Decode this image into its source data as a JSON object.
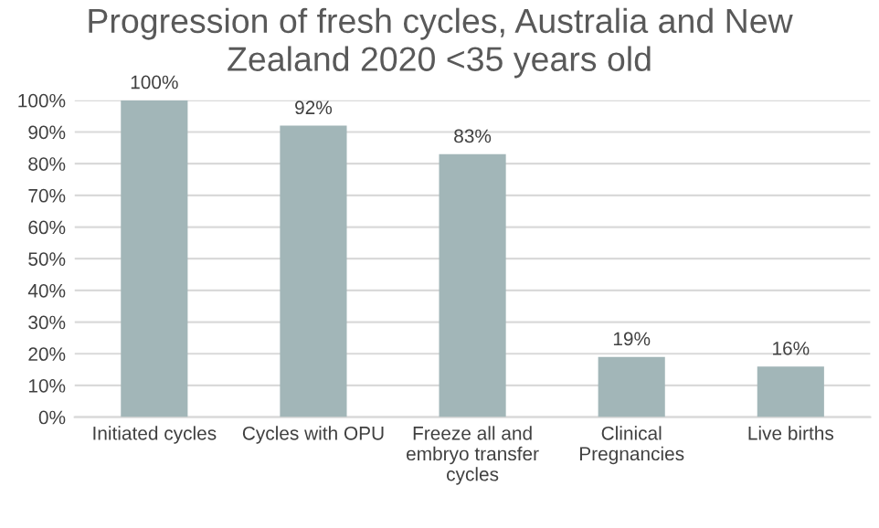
{
  "chart_data": {
    "type": "bar",
    "title": "Progression of fresh cycles, Australia and New\nZealand 2020 <35 years old",
    "categories": [
      "Initiated cycles",
      "Cycles with OPU",
      "Freeze all and\nembryo transfer\ncycles",
      "Clinical\nPregnancies",
      "Live births"
    ],
    "values": [
      100,
      92,
      83,
      19,
      16
    ],
    "value_labels": [
      "100%",
      "92%",
      "83%",
      "19%",
      "16%"
    ],
    "color": "#a2b6b8",
    "ylim": [
      0,
      100
    ],
    "yticks": [
      {
        "value": 0,
        "label": "0%"
      },
      {
        "value": 10,
        "label": "10%"
      },
      {
        "value": 20,
        "label": "20%"
      },
      {
        "value": 30,
        "label": "30%"
      },
      {
        "value": 40,
        "label": "40%"
      },
      {
        "value": 50,
        "label": "50%"
      },
      {
        "value": 60,
        "label": "60%"
      },
      {
        "value": 70,
        "label": "70%"
      },
      {
        "value": 80,
        "label": "80%"
      },
      {
        "value": 90,
        "label": "90%"
      },
      {
        "value": 100,
        "label": "100%"
      }
    ],
    "grid": "y",
    "legend": false
  }
}
